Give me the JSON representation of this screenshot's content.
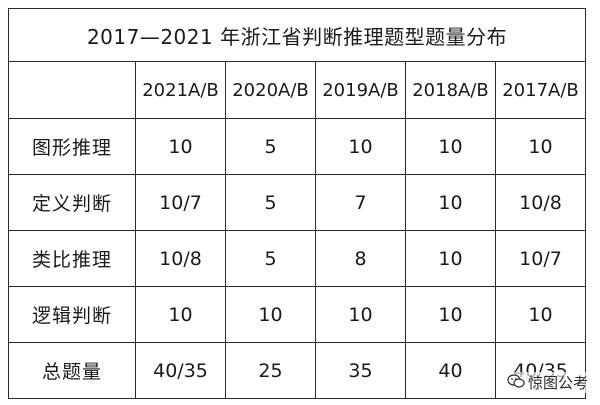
{
  "table": {
    "title": "2017—2021 年浙江省判断推理题型题量分布",
    "headers": [
      "2021A/B",
      "2020A/B",
      "2019A/B",
      "2018A/B",
      "2017A/B"
    ],
    "rows": [
      {
        "label": "图形推理",
        "values": [
          "10",
          "5",
          "10",
          "10",
          "10"
        ]
      },
      {
        "label": "定义判断",
        "values": [
          "10/7",
          "5",
          "7",
          "10",
          "10/8"
        ]
      },
      {
        "label": "类比推理",
        "values": [
          "10/8",
          "5",
          "8",
          "10",
          "10/7"
        ]
      },
      {
        "label": "逻辑判断",
        "values": [
          "10",
          "10",
          "10",
          "10",
          "10"
        ]
      },
      {
        "label": "总题量",
        "values": [
          "40/35",
          "25",
          "35",
          "40",
          "40/35"
        ]
      }
    ]
  },
  "watermark": {
    "icon": "wechat-icon",
    "text": "惊图公考"
  }
}
